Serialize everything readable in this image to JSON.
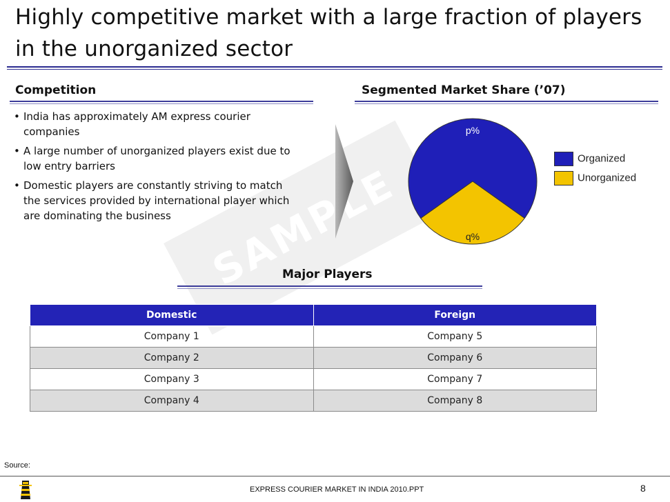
{
  "slide": {
    "title": "Highly competitive market with a large fraction of players in the unorganized sector",
    "watermark": "SAMPLE",
    "page_number": "8",
    "footer_file": "EXPRESS COURIER MARKET IN INDIA 2010.PPT",
    "source_label": "Source:"
  },
  "competition": {
    "heading": "Competition",
    "bullets": [
      "India has approximately AM express courier companies",
      "A large number of unorganized players exist due to low entry barriers",
      "Domestic players are constantly striving to match the services provided by international player which are dominating the business"
    ]
  },
  "market_share": {
    "heading": "Segmented Market Share (’07)",
    "colors": {
      "organized": "#1f1fb8",
      "unorganized": "#f3c400"
    },
    "chart_data": {
      "type": "pie",
      "title": "Segmented Market Share (’07)",
      "labels": [
        "Organized",
        "Unorganized"
      ],
      "slice_labels": [
        "p%",
        "q%"
      ],
      "values": [
        70,
        30
      ],
      "legend_position": "right"
    }
  },
  "players": {
    "heading": "Major Players",
    "columns": [
      "Domestic",
      "Foreign"
    ],
    "rows": [
      [
        "Company 1",
        "Company 5"
      ],
      [
        "Company 2",
        "Company 6"
      ],
      [
        "Company 3",
        "Company 7"
      ],
      [
        "Company 4",
        "Company 8"
      ]
    ]
  }
}
